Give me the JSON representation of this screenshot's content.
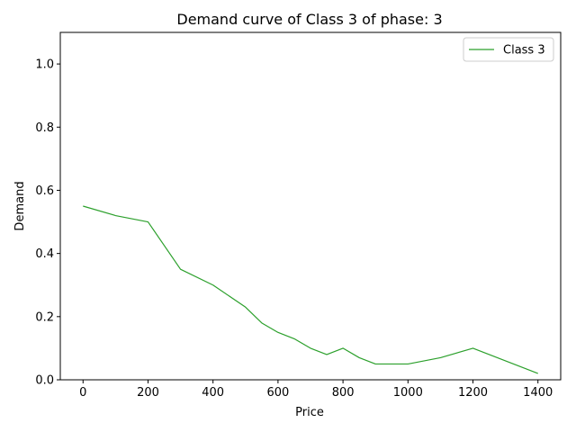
{
  "chart_data": {
    "type": "line",
    "title": "Demand curve of Class 3 of phase: 3",
    "xlabel": "Price",
    "ylabel": "Demand",
    "xlim": [
      -70,
      1470
    ],
    "ylim": [
      0.0,
      1.1
    ],
    "xticks": [
      0,
      200,
      400,
      600,
      800,
      1000,
      1200,
      1400
    ],
    "xtick_labels": [
      "0",
      "200",
      "400",
      "600",
      "800",
      "1000",
      "1200",
      "1400"
    ],
    "yticks": [
      0.0,
      0.2,
      0.4,
      0.6,
      0.8,
      1.0
    ],
    "ytick_labels": [
      "0.0",
      "0.2",
      "0.4",
      "0.6",
      "0.8",
      "1.0"
    ],
    "grid": false,
    "legend_position": "top-right",
    "series": [
      {
        "name": "Class 3",
        "color": "#2ca02c",
        "x": [
          0,
          100,
          200,
          300,
          400,
          500,
          550,
          600,
          650,
          700,
          750,
          800,
          850,
          900,
          1000,
          1100,
          1200,
          1300,
          1400
        ],
        "y": [
          0.55,
          0.52,
          0.5,
          0.35,
          0.3,
          0.23,
          0.18,
          0.15,
          0.13,
          0.1,
          0.08,
          0.1,
          0.07,
          0.05,
          0.05,
          0.07,
          0.1,
          0.06,
          0.02
        ]
      }
    ]
  }
}
